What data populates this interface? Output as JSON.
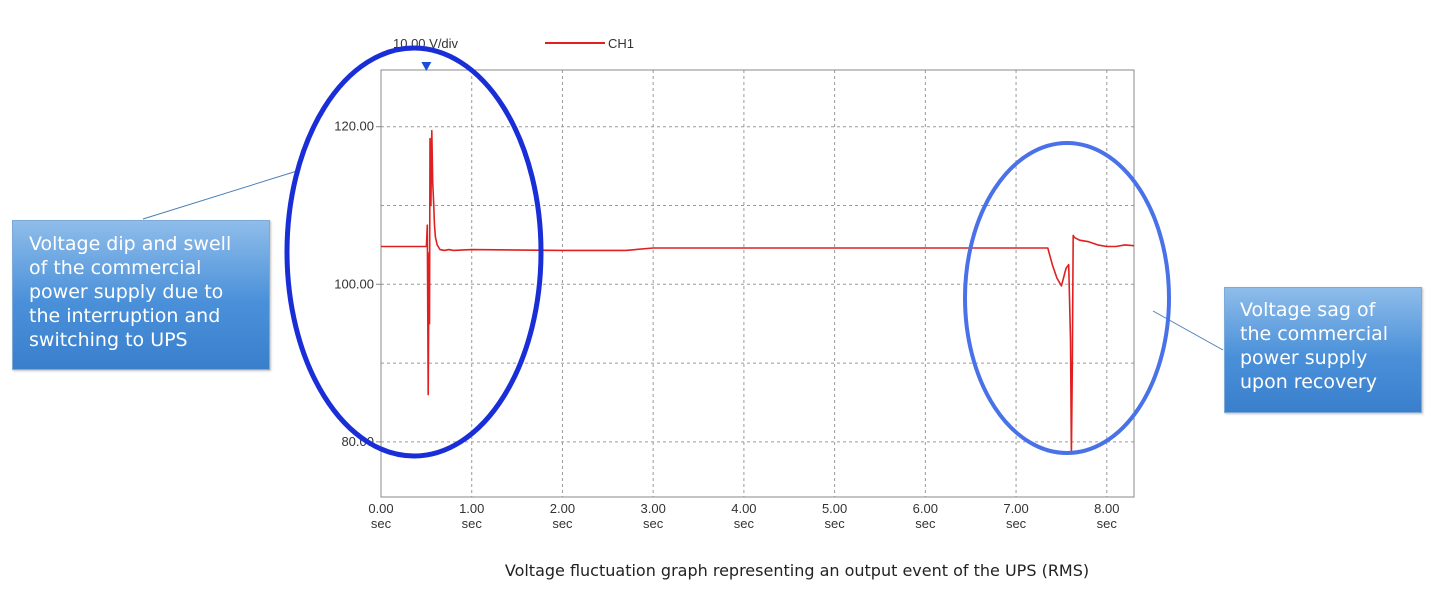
{
  "chart_data": {
    "type": "line",
    "scale_label": "10.00 V/div",
    "legend": [
      "CH1"
    ],
    "series": [
      {
        "name": "CH1",
        "color": "#e02020",
        "x": [
          0.0,
          0.5,
          0.51,
          0.52,
          0.53,
          0.535,
          0.54,
          0.55,
          0.56,
          0.57,
          0.58,
          0.59,
          0.6,
          0.62,
          0.65,
          0.7,
          0.75,
          0.8,
          1.0,
          2.0,
          2.7,
          3.0,
          4.0,
          5.0,
          6.0,
          7.0,
          7.35,
          7.4,
          7.45,
          7.5,
          7.55,
          7.58,
          7.6,
          7.61,
          7.62,
          7.63,
          7.64,
          7.65,
          7.7,
          7.8,
          7.9,
          8.0,
          8.1,
          8.2,
          8.3
        ],
        "y": [
          104.8,
          104.8,
          107.5,
          86.0,
          104.0,
          95.0,
          118.5,
          110.0,
          119.5,
          113.0,
          110.5,
          107.5,
          106.0,
          105.0,
          104.4,
          104.3,
          104.4,
          104.3,
          104.4,
          104.3,
          104.3,
          104.6,
          104.6,
          104.6,
          104.6,
          104.6,
          104.6,
          102.5,
          100.8,
          99.8,
          102.0,
          102.5,
          93.0,
          78.5,
          89.5,
          106.2,
          106.0,
          105.9,
          105.6,
          105.4,
          105.0,
          104.8,
          104.8,
          105.0,
          104.9
        ]
      }
    ],
    "xlim": [
      0.0,
      8.3
    ],
    "ylim": [
      73.0,
      127.2
    ],
    "x_ticks": [
      {
        "value": 0.0,
        "label": "0.00",
        "unit": "sec"
      },
      {
        "value": 1.0,
        "label": "1.00",
        "unit": "sec"
      },
      {
        "value": 2.0,
        "label": "2.00",
        "unit": "sec"
      },
      {
        "value": 3.0,
        "label": "3.00",
        "unit": "sec"
      },
      {
        "value": 4.0,
        "label": "4.00",
        "unit": "sec"
      },
      {
        "value": 5.0,
        "label": "5.00",
        "unit": "sec"
      },
      {
        "value": 6.0,
        "label": "6.00",
        "unit": "sec"
      },
      {
        "value": 7.0,
        "label": "7.00",
        "unit": "sec"
      },
      {
        "value": 8.0,
        "label": "8.00",
        "unit": "sec"
      }
    ],
    "y_labeled_ticks": [
      {
        "value": 120.0,
        "label": "120.00"
      },
      {
        "value": 100.0,
        "label": "100.00"
      },
      {
        "value": 80.0,
        "label": "80.00"
      }
    ],
    "y_gridlines": [
      80.0,
      90.0,
      100.0,
      110.0,
      120.0
    ],
    "grid": true,
    "trigger_marker_x": 0.5,
    "annotations": [
      {
        "id": "left",
        "lines": [
          "Voltage dip and swell",
          "of the commercial",
          "power supply due to",
          "the interruption and",
          "switching to UPS"
        ],
        "ellipse_color": "#1a2ed8"
      },
      {
        "id": "right",
        "lines": [
          "Voltage sag of",
          "the commercial",
          "power supply",
          "upon recovery"
        ],
        "ellipse_color": "#4a72e8"
      }
    ],
    "caption": "Voltage fluctuation graph representing an output event of the UPS (RMS)"
  }
}
